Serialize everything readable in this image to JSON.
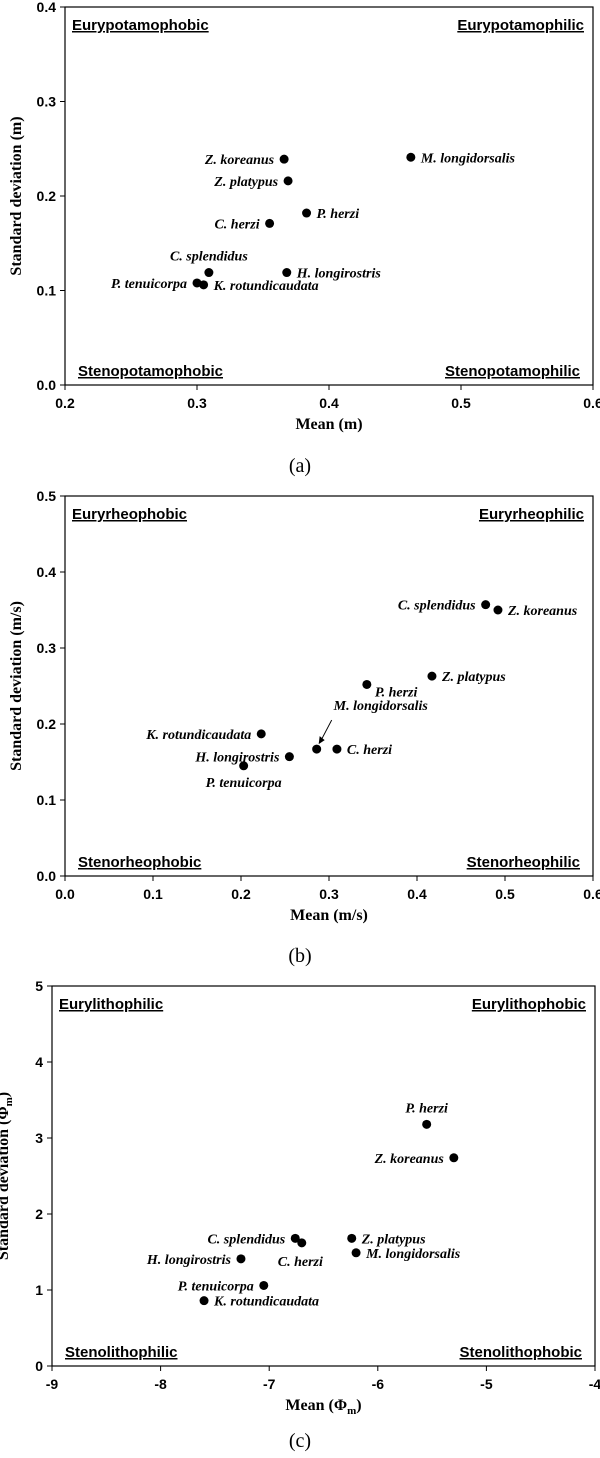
{
  "chart_data": [
    {
      "type": "scatter",
      "panel_label": "(a)",
      "xlabel": "Mean (m)",
      "ylabel": "Standard deviation (m)",
      "xlim": [
        0.2,
        0.6
      ],
      "ylim": [
        0.0,
        0.4
      ],
      "xticks": [
        "0.2",
        "0.3",
        "0.4",
        "0.5",
        "0.6"
      ],
      "yticks": [
        "0.0",
        "0.1",
        "0.2",
        "0.3",
        "0.4"
      ],
      "quadrants": {
        "top_left": "Eurypotamophobic",
        "top_right": "Eurypotamophilic",
        "bottom_left": "Stenopotamophobic",
        "bottom_right": "Stenopotamophilic"
      },
      "points": [
        {
          "name": "Z. koreanus",
          "x": 0.366,
          "y": 0.239,
          "label_side": "left"
        },
        {
          "name": "Z. platypus",
          "x": 0.369,
          "y": 0.216,
          "label_side": "left"
        },
        {
          "name": "M. longidorsalis",
          "x": 0.462,
          "y": 0.241,
          "label_side": "right"
        },
        {
          "name": "P. herzi",
          "x": 0.383,
          "y": 0.182,
          "label_side": "right"
        },
        {
          "name": "C. herzi",
          "x": 0.355,
          "y": 0.171,
          "label_side": "left"
        },
        {
          "name": "C. splendidus",
          "x": 0.309,
          "y": 0.119,
          "label_side": "above"
        },
        {
          "name": "H. longirostris",
          "x": 0.368,
          "y": 0.119,
          "label_side": "right"
        },
        {
          "name": "P. tenuicorpa",
          "x": 0.3,
          "y": 0.108,
          "label_side": "left"
        },
        {
          "name": "K. rotundicaudata",
          "x": 0.305,
          "y": 0.106,
          "label_side": "right"
        }
      ]
    },
    {
      "type": "scatter",
      "panel_label": "(b)",
      "xlabel": "Mean (m/s)",
      "ylabel": "Standard deviation (m/s)",
      "xlim": [
        0.0,
        0.6
      ],
      "ylim": [
        0.0,
        0.5
      ],
      "xticks": [
        "0.0",
        "0.1",
        "0.2",
        "0.3",
        "0.4",
        "0.5",
        "0.6"
      ],
      "yticks": [
        "0.0",
        "0.1",
        "0.2",
        "0.3",
        "0.4",
        "0.5"
      ],
      "quadrants": {
        "top_left": "Euryrheophobic",
        "top_right": "Euryrheophilic",
        "bottom_left": "Stenorheophobic",
        "bottom_right": "Stenorheophilic"
      },
      "points": [
        {
          "name": "C. splendidus",
          "x": 0.478,
          "y": 0.357,
          "label_side": "left"
        },
        {
          "name": "Z. koreanus",
          "x": 0.492,
          "y": 0.35,
          "label_side": "right"
        },
        {
          "name": "Z. platypus",
          "x": 0.417,
          "y": 0.263,
          "label_side": "right"
        },
        {
          "name": "P. herzi",
          "x": 0.343,
          "y": 0.252,
          "label_side": "right-below"
        },
        {
          "name": "M. longidorsalis",
          "x": 0.286,
          "y": 0.167,
          "label_side": "arrow"
        },
        {
          "name": "C. herzi",
          "x": 0.309,
          "y": 0.167,
          "label_side": "right"
        },
        {
          "name": "K. rotundicaudata",
          "x": 0.223,
          "y": 0.187,
          "label_side": "left"
        },
        {
          "name": "H. longirostris",
          "x": 0.255,
          "y": 0.157,
          "label_side": "left"
        },
        {
          "name": "P. tenuicorpa",
          "x": 0.203,
          "y": 0.145,
          "label_side": "below"
        }
      ]
    },
    {
      "type": "scatter",
      "panel_label": "(c)",
      "xlabel": "Mean (Φm)",
      "ylabel": "Standard deviation (Φm)",
      "xlim": [
        -9,
        -4
      ],
      "ylim": [
        0,
        5
      ],
      "xticks": [
        "-9",
        "-8",
        "-7",
        "-6",
        "-5",
        "-4"
      ],
      "yticks": [
        "0",
        "1",
        "2",
        "3",
        "4",
        "5"
      ],
      "quadrants": {
        "top_left": "Eurylithophilic",
        "top_right": "Eurylithophobic",
        "bottom_left": "Stenolithophilic",
        "bottom_right": "Stenolithophobic"
      },
      "points": [
        {
          "name": "P. herzi",
          "x": -5.55,
          "y": 3.18,
          "label_side": "above"
        },
        {
          "name": "Z. koreanus",
          "x": -5.3,
          "y": 2.74,
          "label_side": "left"
        },
        {
          "name": "C. splendidus",
          "x": -6.76,
          "y": 1.68,
          "label_side": "left"
        },
        {
          "name": "C. herzi",
          "x": -6.7,
          "y": 1.62,
          "label_side": "below-right"
        },
        {
          "name": "Z. platypus",
          "x": -6.24,
          "y": 1.68,
          "label_side": "right"
        },
        {
          "name": "M. longidorsalis",
          "x": -6.2,
          "y": 1.49,
          "label_side": "right"
        },
        {
          "name": "H. longirostris",
          "x": -7.26,
          "y": 1.41,
          "label_side": "left"
        },
        {
          "name": "P. tenuicorpa",
          "x": -7.05,
          "y": 1.06,
          "label_side": "left"
        },
        {
          "name": "K. rotundicaudata",
          "x": -7.6,
          "y": 0.86,
          "label_side": "right"
        }
      ]
    }
  ]
}
